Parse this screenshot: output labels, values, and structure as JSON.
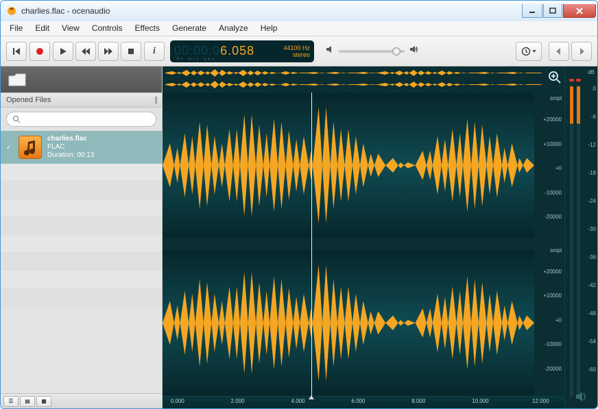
{
  "window": {
    "title": "charlies.flac - ocenaudio"
  },
  "menu": [
    "File",
    "Edit",
    "View",
    "Controls",
    "Effects",
    "Generate",
    "Analyze",
    "Help"
  ],
  "lcd": {
    "counter_dim": "00:00:0",
    "counter_lit": "6.058",
    "sub_labels": "hr  min sec",
    "sample_rate": "44100 Hz",
    "channels": "stereo"
  },
  "sidebar": {
    "section": "Opened Files",
    "search_placeholder": "",
    "file": {
      "name": "charlies.flac",
      "format": "FLAC",
      "duration": "Duration: 00:13"
    }
  },
  "time_ticks": [
    "0.000",
    "2.000",
    "4.000",
    "6.000",
    "8.000",
    "10.000",
    "12.000"
  ],
  "amp_labels_ch": [
    "smpl",
    "+20000",
    "+10000",
    "+0",
    "-10000",
    "-20000"
  ],
  "db_labels": [
    "dB",
    "0",
    "-6",
    "-12",
    "-18",
    "-24",
    "-30",
    "-36",
    "-42",
    "-48",
    "-54",
    "-60"
  ],
  "colors": {
    "wave_fill": "#f5a623",
    "wave_bg": "#093639",
    "editor_grad_top": "#0d4046",
    "editor_grad_bot": "#072a2e",
    "playhead": "#eeeeee",
    "sidebar_sel": "#8fb9bb",
    "lcd_bg": "#05262b",
    "lcd_lit": "#f6a623",
    "lcd_dim": "#09444c"
  },
  "waveforms": {
    "overview_poly": "0,7 3,5 6,9 9,3 12,11 15,4 18,10 21,2 24,12 27,5 30,9 33,3 36,11 39,4 42,10 45,6 48,8 51,5 54,9 57,7 60,7 63,6 66,8 69,7 72,6 75,8 78,7 81,7 84,6 87,8 90,7 93,5 96,9 99,4 102,10 105,3 108,11 111,5 114,9 117,4 120,10 123,6 126,8 129,7 132,7 135,6 138,8 141,7 144,7 147,6 150,8 153,7 156,7 159,7 159,8 156,8 153,8 150,7 147,9 144,8 141,8 138,7 135,9 132,8 129,8 126,7 123,9 120,5 117,11 114,6 111,10 108,4 105,12 102,5 99,11 96,6 93,10 90,8 87,7 84,9 81,8 78,8 75,7 72,9 69,8 66,7 63,9 60,8 57,8 54,6 51,10 48,7 45,9 42,5 39,11 36,4 33,12 30,6 27,10 24,3 21,13 18,5 15,11 12,4 9,12 6,6 3,10 0,8",
    "channel_poly": "0,50 8,35 16,62 24,28 32,70 40,20 48,78 56,30 64,65 72,25 80,75 88,15 96,85 104,22 112,72 120,18 128,80 136,26 144,68 152,30 160,60 168,10 176,90 184,20 192,75 200,25 208,70 216,35 224,58 232,42 240,50 248,45 256,52 264,48 272,50 280,40 288,60 296,30 304,68 312,25 320,72 328,18 336,80 344,22 352,70 360,28 368,62 376,35 384,55 392,45 400,50 400,50 392,55 384,45 376,65 368,38 360,72 352,30 344,78 336,20 328,82 320,28 312,75 304,32 296,70 288,40 280,60 272,50 264,52 256,48 248,55 240,50 232,58 224,42 216,65 208,30 200,75 192,25 184,80 176,10 168,90 160,40 152,70 144,32 136,74 128,20 120,82 112,28 104,78 96,15 88,85 80,25 72,75 64,35 56,70 48,22 40,80 32,30 24,72 16,38 8,65 0,50"
  }
}
